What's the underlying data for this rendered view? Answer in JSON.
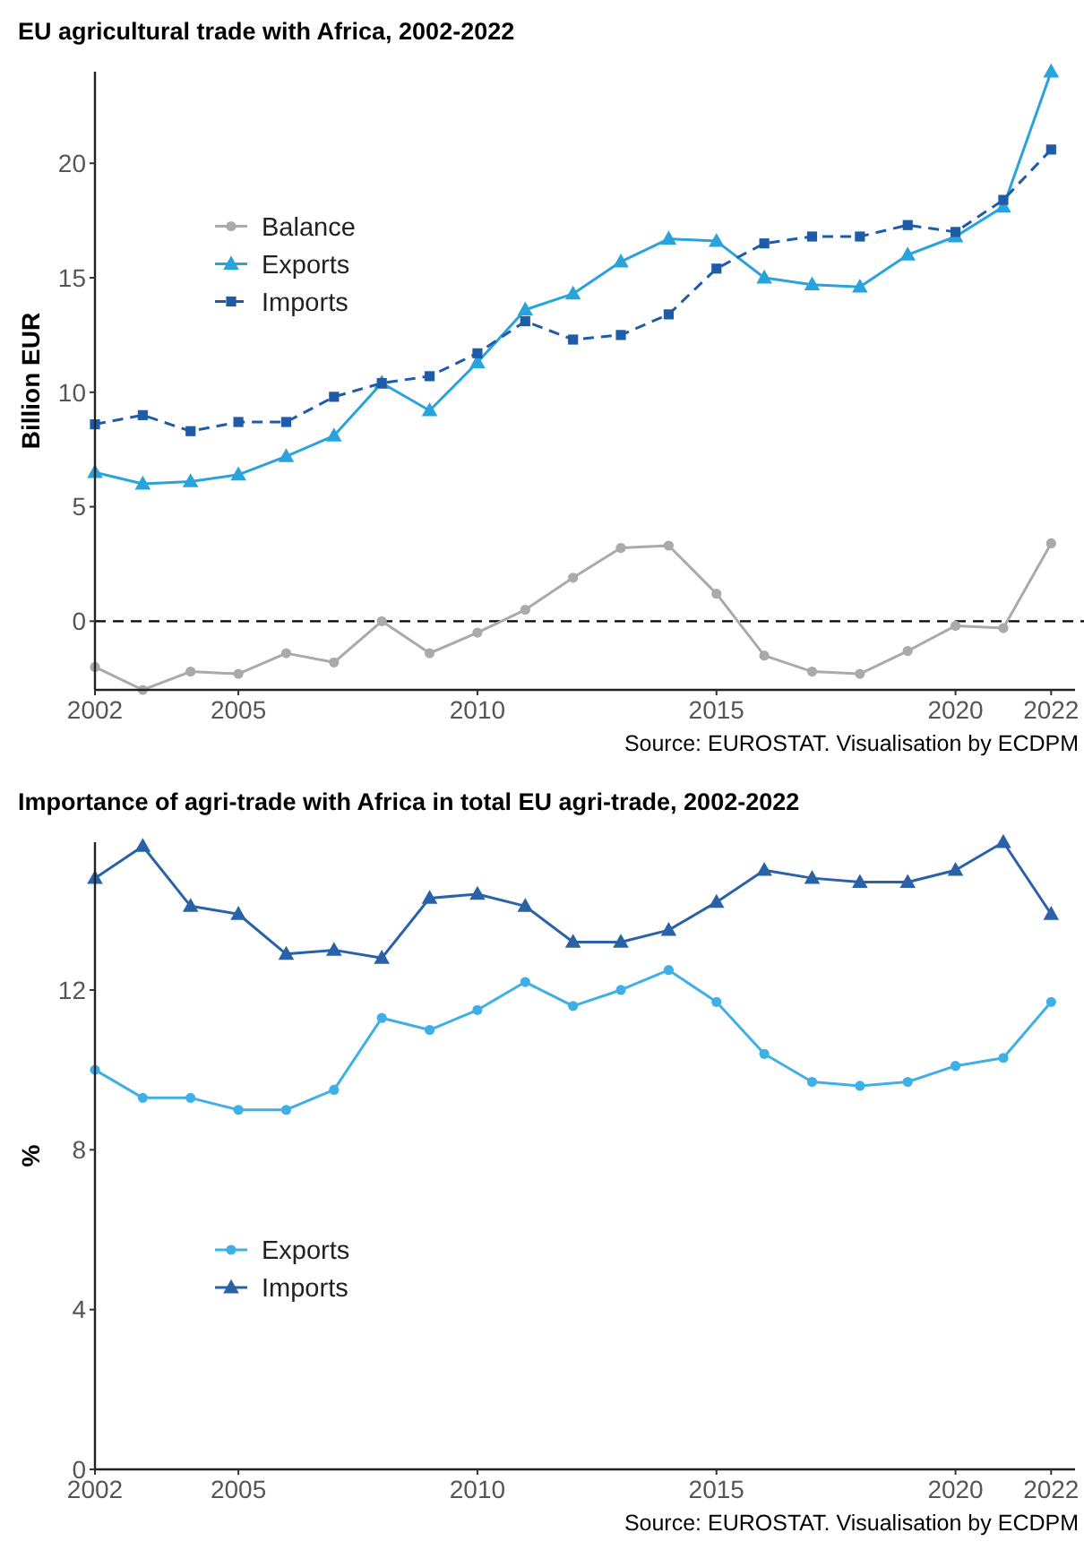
{
  "chart_data": [
    {
      "type": "line",
      "title": "EU agricultural trade with Africa, 2002-2022",
      "ylabel": "Billion EUR",
      "x": [
        2002,
        2003,
        2004,
        2005,
        2006,
        2007,
        2008,
        2009,
        2010,
        2011,
        2012,
        2013,
        2014,
        2015,
        2016,
        2017,
        2018,
        2019,
        2020,
        2021,
        2022
      ],
      "xlim": [
        2002,
        2022.5
      ],
      "xticks": [
        2002,
        2005,
        2010,
        2015,
        2020,
        2022
      ],
      "ylim": [
        -3,
        24
      ],
      "yticks": [
        0,
        5,
        10,
        15,
        20
      ],
      "grid": false,
      "legend": "left",
      "annotations": [
        "Source: EUROSTAT. Visualisation by ECDPM"
      ],
      "ref_lines": [
        {
          "axis": "y",
          "value": 0,
          "line_style": "dashed",
          "color": "#000000"
        }
      ],
      "series": [
        {
          "name": "Balance",
          "color": "#aaaaaa",
          "marker": "circle",
          "line_style": "solid",
          "values": [
            -2.0,
            -3.0,
            -2.2,
            -2.3,
            -1.4,
            -1.8,
            0.0,
            -1.4,
            -0.5,
            0.5,
            1.9,
            3.2,
            3.3,
            1.2,
            -1.5,
            -2.2,
            -2.3,
            -1.3,
            -0.2,
            -0.3,
            3.4
          ]
        },
        {
          "name": "Exports",
          "color": "#29a3dc",
          "marker": "triangle",
          "line_style": "solid",
          "values": [
            6.5,
            6.0,
            6.1,
            6.4,
            7.2,
            8.1,
            10.4,
            9.2,
            11.3,
            13.6,
            14.3,
            15.7,
            16.7,
            16.6,
            15.0,
            14.7,
            14.6,
            16.0,
            16.8,
            18.1,
            24.0
          ]
        },
        {
          "name": "Imports",
          "color": "#1f5ca8",
          "marker": "square",
          "line_style": "dashed",
          "values": [
            8.6,
            9.0,
            8.3,
            8.7,
            8.7,
            9.8,
            10.4,
            10.7,
            11.7,
            13.1,
            12.3,
            12.5,
            13.4,
            15.4,
            16.5,
            16.8,
            16.8,
            17.3,
            17.0,
            18.4,
            20.6
          ]
        }
      ]
    },
    {
      "type": "line",
      "title": "Importance of agri-trade with Africa in total EU agri-trade, 2002-2022",
      "ylabel": "%",
      "x": [
        2002,
        2003,
        2004,
        2005,
        2006,
        2007,
        2008,
        2009,
        2010,
        2011,
        2012,
        2013,
        2014,
        2015,
        2016,
        2017,
        2018,
        2019,
        2020,
        2021,
        2022
      ],
      "xlim": [
        2002,
        2022.5
      ],
      "xticks": [
        2002,
        2005,
        2010,
        2015,
        2020,
        2022
      ],
      "ylim": [
        0,
        15.7
      ],
      "yticks": [
        0,
        4,
        8,
        12
      ],
      "grid": false,
      "legend": "left",
      "annotations": [
        "Source: EUROSTAT. Visualisation by ECDPM"
      ],
      "series": [
        {
          "name": "Exports",
          "color": "#3fb0e6",
          "marker": "circle",
          "line_style": "solid",
          "values": [
            10.0,
            9.3,
            9.3,
            9.0,
            9.0,
            9.5,
            11.3,
            11.0,
            11.5,
            12.2,
            11.6,
            12.0,
            12.5,
            11.7,
            10.4,
            9.7,
            9.6,
            9.7,
            10.1,
            10.3,
            11.7
          ]
        },
        {
          "name": "Imports",
          "color": "#2a62a8",
          "marker": "triangle",
          "line_style": "solid",
          "values": [
            14.8,
            15.6,
            14.1,
            13.9,
            12.9,
            13.0,
            12.8,
            14.3,
            14.4,
            14.1,
            13.2,
            13.2,
            13.5,
            14.2,
            15.0,
            14.8,
            14.7,
            14.7,
            15.0,
            15.7,
            13.9
          ]
        }
      ]
    }
  ]
}
